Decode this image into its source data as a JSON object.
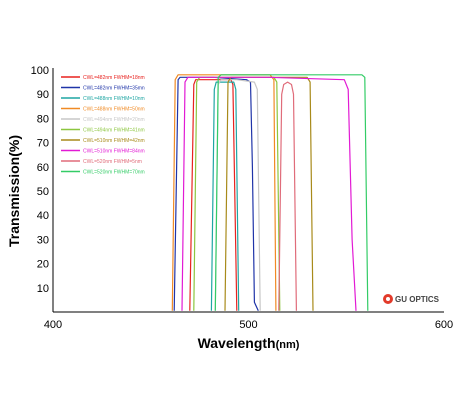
{
  "chart_data": {
    "type": "line",
    "xlabel": "Wavelength",
    "xunit": "(nm)",
    "ylabel": "Transmission(%)",
    "xlim": [
      400,
      600
    ],
    "ylim": [
      0,
      100
    ],
    "xticks": [
      400,
      500,
      600
    ],
    "yticks": [
      10,
      20,
      30,
      40,
      50,
      60,
      70,
      80,
      90,
      100
    ],
    "grid": false,
    "legend_position": "top-left",
    "logo_text": "GU OPTICS",
    "series": [
      {
        "name": "CWL=482nm FWHM=18nm",
        "color": "#e8221f",
        "x": [
          470,
          472,
          473,
          482,
          491,
          492,
          494
        ],
        "y": [
          0.5,
          94,
          96,
          96,
          96,
          94,
          0.5
        ]
      },
      {
        "name": "CWL=482nm FWHM=35mn",
        "color": "#1f34a8",
        "x": [
          462,
          464,
          465,
          482,
          499,
          501,
          502,
          503,
          505
        ],
        "y": [
          0.5,
          96,
          97,
          97,
          96,
          95,
          60,
          4,
          0.5
        ]
      },
      {
        "name": "CWL=488nm FWHM=10nm",
        "color": "#1fa6a3",
        "x": [
          481,
          482.5,
          483.5,
          488,
          492.5,
          493.5,
          495
        ],
        "y": [
          0.5,
          92,
          95,
          95,
          95,
          92,
          0.5
        ]
      },
      {
        "name": "CWL=488nm FWHM=50nm",
        "color": "#f08a24",
        "x": [
          461,
          462.5,
          464,
          488,
          511,
          513,
          514
        ],
        "y": [
          0.5,
          96,
          98,
          98,
          98,
          96,
          0.5
        ]
      },
      {
        "name": "CWL=494nm FWHM=20nm",
        "color": "#c7c7c7",
        "x": [
          483,
          484.5,
          486,
          494,
          503,
          504.5,
          506
        ],
        "y": [
          0.5,
          94,
          96,
          96,
          95,
          92,
          0.5
        ]
      },
      {
        "name": "CWL=494nm FWHM=41nm",
        "color": "#8cc63f",
        "x": [
          472,
          473.5,
          475,
          494,
          513,
          514.5,
          516
        ],
        "y": [
          0.5,
          95,
          97,
          97,
          97,
          95,
          0.5
        ]
      },
      {
        "name": "CWL=510nm FWHM=42nm",
        "color": "#a88a1a",
        "x": [
          488,
          489.5,
          491,
          510,
          530,
          531.5,
          533
        ],
        "y": [
          0.5,
          95,
          97,
          97,
          97,
          95,
          0.5
        ]
      },
      {
        "name": "CWL=510nm FWHM=84nm",
        "color": "#e21ad4",
        "x": [
          466,
          467.5,
          469,
          510,
          549,
          551,
          553,
          555
        ],
        "y": [
          0.5,
          95,
          97,
          97,
          96,
          92,
          30,
          0.5
        ]
      },
      {
        "name": "CWL=520nm FWHM=5nm",
        "color": "#e06c7a",
        "x": [
          515.5,
          517,
          518,
          520,
          522,
          523,
          524.5
        ],
        "y": [
          0.5,
          90,
          94,
          95,
          94,
          90,
          0.5
        ]
      },
      {
        "name": "CWL=520nm FWHM=70nm",
        "color": "#33cc66",
        "x": [
          483,
          484.5,
          486,
          520,
          558,
          559.5,
          561
        ],
        "y": [
          0.5,
          97,
          98,
          98,
          98,
          97,
          0.5
        ]
      }
    ]
  }
}
